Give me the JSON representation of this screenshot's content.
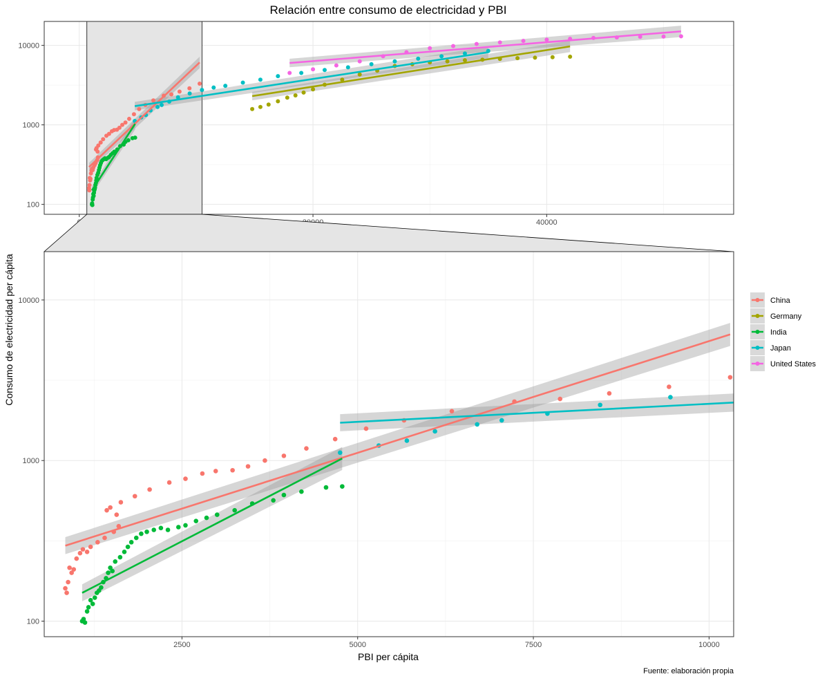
{
  "chart_data": {
    "type": "scatter",
    "title": "Relación entre consumo de electricidad y PBI",
    "xlabel": "PBI per cápita",
    "ylabel": "Consumo de electricidad per cápita",
    "caption": "Fuente: elaboración propia",
    "y_scale": "log10",
    "grid": true,
    "legend_position": "right",
    "overview": {
      "xlim": [
        -3000,
        56000
      ],
      "ylim": [
        75,
        20000
      ],
      "x_ticks": [
        0,
        20000,
        40000
      ],
      "x_tick_labels": [
        "0",
        "20000",
        "40000"
      ],
      "y_ticks": [
        100,
        1000,
        10000
      ],
      "y_tick_labels": [
        "100",
        "1000",
        "10000"
      ],
      "zoom_region_x": [
        650,
        10500
      ]
    },
    "zoom": {
      "xlim": [
        540,
        10350
      ],
      "ylim": [
        80,
        20000
      ],
      "x_ticks": [
        2500,
        5000,
        7500,
        10000
      ],
      "x_tick_labels": [
        "2500",
        "5000",
        "7500",
        "10000"
      ],
      "y_ticks": [
        100,
        1000,
        10000
      ],
      "y_tick_labels": [
        "100",
        "1000",
        "10000"
      ]
    },
    "series": [
      {
        "name": "China",
        "color": "#F8766D",
        "x": [
          840,
          860,
          880,
          900,
          930,
          960,
          1000,
          1050,
          1090,
          1150,
          1200,
          1300,
          1400,
          1430,
          1480,
          1530,
          1570,
          1600,
          1630,
          1830,
          2040,
          2320,
          2550,
          2790,
          2980,
          3220,
          3440,
          3680,
          3950,
          4270,
          4680,
          5120,
          5660,
          6340,
          7230,
          7880,
          8580,
          9430,
          10300
        ],
        "y": [
          160,
          150,
          175,
          215,
          200,
          210,
          245,
          265,
          280,
          270,
          290,
          310,
          330,
          490,
          510,
          360,
          460,
          390,
          550,
          600,
          660,
          730,
          770,
          830,
          860,
          870,
          920,
          1000,
          1070,
          1190,
          1360,
          1580,
          1780,
          2030,
          2330,
          2420,
          2620,
          2880,
          3300
        ],
        "fit": {
          "x": [
            840,
            10300
          ],
          "y": [
            295,
            6100
          ]
        }
      },
      {
        "name": "Germany",
        "color": "#A3A500",
        "x": [
          14800,
          15500,
          16200,
          17000,
          17800,
          18500,
          19200,
          20000,
          21000,
          22500,
          24000,
          25500,
          27000,
          28500,
          30000,
          31500,
          33000,
          34500,
          36000,
          37500,
          39000,
          40500,
          42000
        ],
        "y": [
          1580,
          1680,
          1800,
          1980,
          2200,
          2350,
          2550,
          2800,
          3200,
          3700,
          4300,
          4800,
          5500,
          5800,
          6100,
          6300,
          6500,
          6600,
          6750,
          6900,
          7000,
          7100,
          7200
        ],
        "fit": {
          "x": [
            14800,
            42000
          ],
          "y": [
            2300,
            9700
          ]
        }
      },
      {
        "name": "India",
        "color": "#00BA38",
        "x": [
          1080,
          1100,
          1120,
          1150,
          1170,
          1200,
          1230,
          1260,
          1290,
          1320,
          1350,
          1380,
          1420,
          1450,
          1480,
          1510,
          1550,
          1620,
          1680,
          1730,
          1780,
          1850,
          1920,
          2000,
          2100,
          2200,
          2300,
          2450,
          2550,
          2700,
          2850,
          3000,
          3250,
          3500,
          3800,
          3950,
          4200,
          4550,
          4780
        ],
        "y": [
          100,
          103,
          98,
          115,
          122,
          135,
          128,
          140,
          150,
          155,
          162,
          175,
          185,
          200,
          215,
          205,
          235,
          250,
          270,
          290,
          310,
          330,
          350,
          360,
          370,
          380,
          370,
          385,
          395,
          420,
          440,
          460,
          490,
          540,
          565,
          610,
          640,
          680,
          690
        ],
        "fit": {
          "x": [
            1080,
            4780
          ],
          "y": [
            150,
            1030
          ]
        }
      },
      {
        "name": "Japan",
        "color": "#00BFC4",
        "x": [
          4750,
          5300,
          5700,
          6100,
          6700,
          7050,
          7700,
          8450,
          9450,
          10500,
          11500,
          12500,
          14000,
          15500,
          17000,
          19000,
          21000,
          23000,
          25000,
          27000,
          29000,
          31000,
          33000,
          35000
        ],
        "y": [
          1120,
          1240,
          1330,
          1520,
          1680,
          1780,
          1960,
          2220,
          2480,
          2750,
          2950,
          3100,
          3400,
          3700,
          4100,
          4500,
          4900,
          5300,
          5800,
          6300,
          6800,
          7300,
          7900,
          8500
        ],
        "fit": {
          "x": [
            4750,
            35000
          ],
          "y": [
            1720,
            8200
          ]
        }
      },
      {
        "name": "United States",
        "color": "#F564E3",
        "x": [
          18000,
          20000,
          22000,
          24000,
          26000,
          28000,
          30000,
          32000,
          34000,
          36000,
          38000,
          40000,
          42000,
          44000,
          46000,
          48000,
          50000,
          51500
        ],
        "y": [
          4500,
          5000,
          5600,
          6300,
          7300,
          8200,
          9200,
          9800,
          10400,
          10900,
          11400,
          11800,
          12100,
          12400,
          12600,
          12800,
          12900,
          13000
        ],
        "fit": {
          "x": [
            18000,
            51500
          ],
          "y": [
            6000,
            15000
          ]
        }
      }
    ]
  }
}
